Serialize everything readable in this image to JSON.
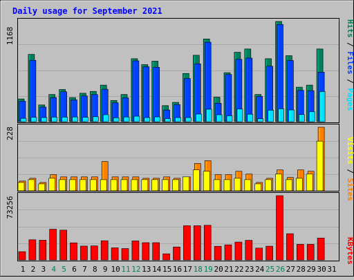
{
  "title": "Daily usage for September 2021",
  "colors": {
    "background": "#c0c0c0",
    "panel": "#c0c0c0",
    "title": "#0000ff",
    "hits": "#00805c",
    "files": "#0040ff",
    "pages": "#00e0ff",
    "visits": "#ffff00",
    "sites": "#ff8000",
    "kbytes": "#ff0000",
    "weekend_day": "#00805c",
    "weekday": "#000000"
  },
  "legend": {
    "top": {
      "pages": "Pages",
      "files": "Files",
      "hits": "Hits",
      "sep": " / "
    },
    "middle": {
      "sites": "Sites",
      "visits": "Visits",
      "sep": " / "
    },
    "bottom": {
      "kbytes": "KBytes"
    }
  },
  "max_labels": {
    "top": "1168",
    "middle": "228",
    "bottom": "73256"
  },
  "chart_data": [
    {
      "type": "bar",
      "title": "Daily usage for September 2021",
      "categories": [
        "1",
        "2",
        "3",
        "4",
        "5",
        "6",
        "7",
        "8",
        "9",
        "10",
        "11",
        "12",
        "13",
        "14",
        "15",
        "16",
        "17",
        "18",
        "19",
        "20",
        "21",
        "22",
        "23",
        "24",
        "25",
        "26",
        "27",
        "28",
        "29",
        "30",
        "31"
      ],
      "ylim": [
        0,
        1168
      ],
      "series": [
        {
          "name": "Hits",
          "values": [
            265,
            784,
            195,
            317,
            375,
            281,
            331,
            353,
            426,
            247,
            317,
            734,
            665,
            705,
            187,
            225,
            562,
            774,
            964,
            286,
            571,
            809,
            847,
            317,
            734,
            1168,
            769,
            402,
            426,
            847,
            0
          ]
        },
        {
          "name": "Files",
          "values": [
            238,
            715,
            170,
            281,
            349,
            254,
            300,
            316,
            378,
            220,
            278,
            709,
            640,
            634,
            136,
            199,
            503,
            674,
            926,
            215,
            550,
            727,
            741,
            294,
            646,
            1133,
            713,
            365,
            361,
            577,
            0
          ]
        },
        {
          "name": "Pages",
          "values": [
            39,
            51,
            48,
            53,
            53,
            55,
            51,
            58,
            81,
            46,
            55,
            64,
            48,
            56,
            36,
            48,
            48,
            89,
            145,
            81,
            69,
            148,
            87,
            34,
            134,
            150,
            137,
            83,
            117,
            351,
            0
          ]
        }
      ]
    },
    {
      "type": "bar",
      "categories": [
        "1",
        "2",
        "3",
        "4",
        "5",
        "6",
        "7",
        "8",
        "9",
        "10",
        "11",
        "12",
        "13",
        "14",
        "15",
        "16",
        "17",
        "18",
        "19",
        "20",
        "21",
        "22",
        "23",
        "24",
        "25",
        "26",
        "27",
        "28",
        "29",
        "30",
        "31"
      ],
      "ylim": [
        0,
        228
      ],
      "series": [
        {
          "name": "Visits",
          "values": [
            30,
            40,
            25,
            45,
            40,
            40,
            40,
            40,
            40,
            40,
            40,
            40,
            40,
            40,
            40,
            40,
            50,
            75,
            70,
            40,
            40,
            45,
            40,
            25,
            40,
            60,
            40,
            45,
            60,
            178,
            0
          ]
        },
        {
          "name": "Sites",
          "values": [
            35,
            45,
            30,
            58,
            50,
            50,
            50,
            50,
            105,
            50,
            50,
            50,
            45,
            45,
            50,
            45,
            50,
            98,
            108,
            58,
            58,
            70,
            60,
            30,
            45,
            75,
            48,
            75,
            70,
            228,
            0
          ]
        }
      ]
    },
    {
      "type": "bar",
      "categories": [
        "1",
        "2",
        "3",
        "4",
        "5",
        "6",
        "7",
        "8",
        "9",
        "10",
        "11",
        "12",
        "13",
        "14",
        "15",
        "16",
        "17",
        "18",
        "19",
        "20",
        "21",
        "22",
        "23",
        "24",
        "25",
        "26",
        "27",
        "28",
        "29",
        "30",
        "31"
      ],
      "ylim": [
        0,
        73256
      ],
      "series": [
        {
          "name": "KBytes",
          "values": [
            9440,
            23000,
            22500,
            35000,
            34000,
            19500,
            15800,
            16000,
            21900,
            13800,
            13000,
            21700,
            19700,
            19700,
            7000,
            14800,
            39000,
            39000,
            39500,
            15600,
            17200,
            20400,
            22400,
            13500,
            15700,
            73256,
            29900,
            17800,
            17800,
            25000,
            0
          ]
        }
      ]
    }
  ]
}
